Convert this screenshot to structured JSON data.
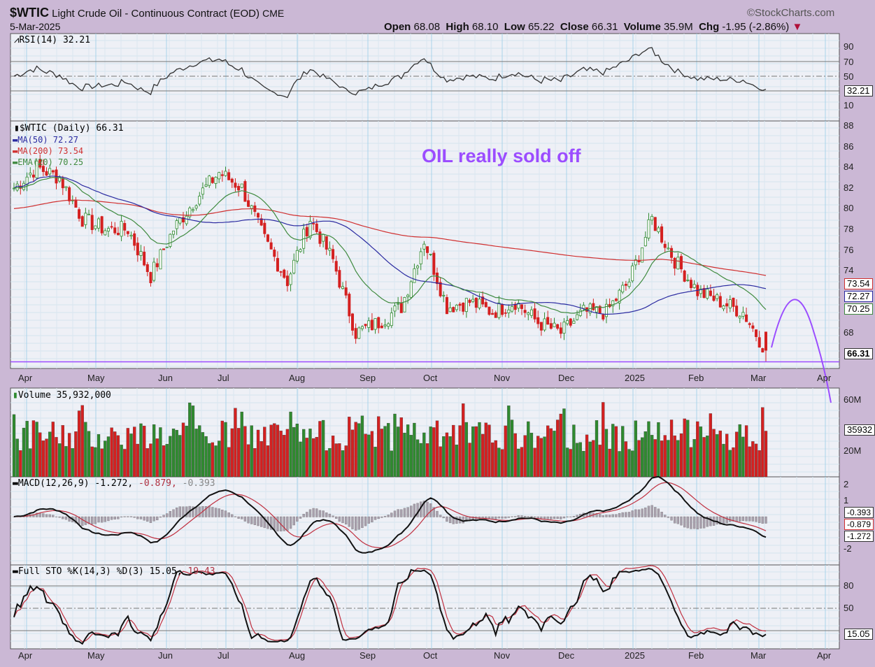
{
  "header": {
    "symbol": "$WTIC",
    "name": "Light Crude Oil - Continuous Contract (EOD)",
    "exchange": "CME",
    "date": "5-Mar-2025",
    "brand": "©StockCharts.com",
    "open_label": "Open",
    "open": "68.08",
    "high_label": "High",
    "high": "68.10",
    "low_label": "Low",
    "low": "65.22",
    "close_label": "Close",
    "close": "66.31",
    "volume_label": "Volume",
    "volume": "35.9M",
    "chg_label": "Chg",
    "chg": "-1.95 (-2.86%)"
  },
  "colors": {
    "up": "#2f8a2f",
    "down": "#d42020",
    "ma50": "#2a2aa0",
    "ma200": "#d03030",
    "ema20": "#3f8a3f",
    "annotation": "#9b4dff",
    "bg": "#cbb8d5",
    "panel": "#eef0f6"
  },
  "legends": {
    "rsi": "RSI(14) 32.21",
    "price": "$WTIC (Daily) 66.31",
    "ma50": "MA(50) 72.27",
    "ma200": "MA(200) 73.54",
    "ema20": "EMA(20) 70.25",
    "volume": "Volume 35,932,000",
    "macd_a": "MACD(12,26,9) -1.272,",
    "macd_b": " -0.879,",
    "macd_c": " -0.393",
    "sto_a": "Full STO %K(14,3) %D(3) 15.05,",
    "sto_b": " 19.43"
  },
  "annotation": "OIL really sold off",
  "chart_data": {
    "type": "candlestick",
    "title": "$WTIC Light Crude Oil - Continuous Contract (EOD)",
    "months": [
      "Apr",
      "May",
      "Jun",
      "Jul",
      "Aug",
      "Sep",
      "Oct",
      "Nov",
      "Dec",
      "2025",
      "Feb",
      "Mar",
      "Apr"
    ],
    "weekly_close_approx": [
      82,
      84,
      83,
      79,
      78,
      78,
      73.5,
      78,
      81,
      83.5,
      82,
      77,
      73,
      79,
      75,
      68,
      69,
      70.5,
      77,
      70.5,
      71,
      70,
      71,
      69,
      68,
      70,
      70,
      73,
      79,
      75,
      72,
      71,
      70,
      66.31
    ],
    "last": {
      "close": 66.31,
      "ma50": 72.27,
      "ma200": 73.54,
      "ema20": 70.25,
      "rsi": 32.21,
      "volume": 35932000,
      "macd": -1.272,
      "signal": -0.879,
      "hist": -0.393,
      "stoK": 15.05,
      "stoD": 19.43
    },
    "axes": {
      "rsi_ticks": [
        "90",
        "70",
        "50",
        "10"
      ],
      "price_ticks": [
        "88",
        "86",
        "84",
        "82",
        "80",
        "78",
        "76",
        "74",
        "68"
      ],
      "volume_ticks": [
        "60M",
        "20M"
      ],
      "macd_ticks": [
        "2",
        "1",
        "-2"
      ],
      "sto_ticks": [
        "80",
        "50"
      ]
    },
    "tags": {
      "rsi": "32.21",
      "ma200": "73.54",
      "ma50": "72.27",
      "ema20": "70.25",
      "close": "66.31",
      "volume": "35932",
      "macd_hist": "-0.393",
      "macd_signal": "-0.879",
      "macd": "-1.272",
      "sto": "15.05"
    },
    "support_level": 65.2
  }
}
